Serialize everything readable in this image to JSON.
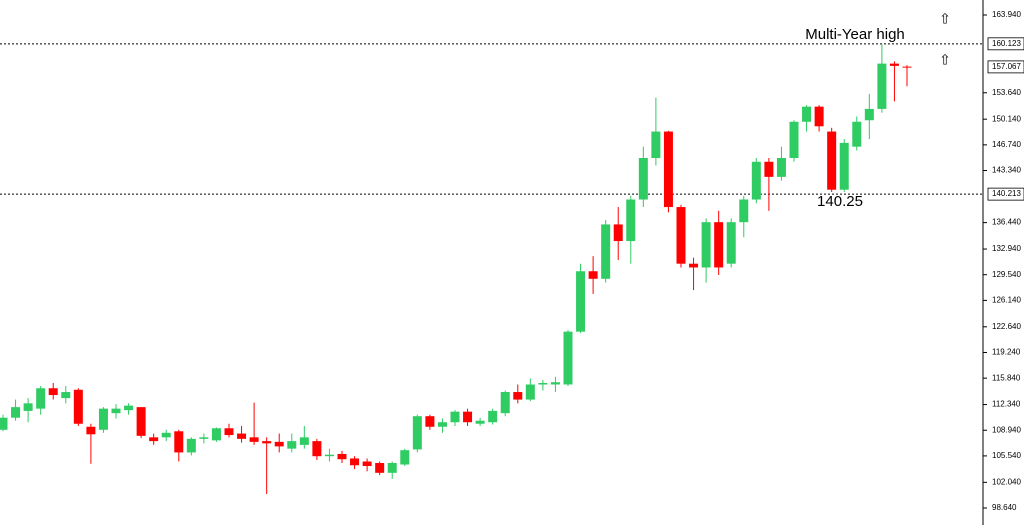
{
  "chart_data": {
    "type": "candlestick",
    "up_color": "#2ecc62",
    "down_color": "#ff0000",
    "open": [
      109.0,
      110.6,
      111.5,
      111.8,
      114.5,
      113.2,
      114.3,
      109.4,
      109.0,
      111.2,
      111.6,
      112.0,
      108.0,
      108.0,
      108.8,
      106.0,
      107.8,
      107.6,
      109.2,
      108.5,
      108.0,
      107.5,
      107.4,
      106.5,
      107.0,
      107.5,
      105.5,
      105.8,
      105.2,
      104.8,
      104.6,
      103.3,
      104.4,
      106.4,
      110.8,
      109.4,
      110.0,
      111.4,
      109.8,
      110.0,
      111.2,
      114.0,
      113.0,
      115.0,
      115.0,
      115.0,
      122.0,
      130.0,
      129.0,
      136.2,
      134.0,
      139.5,
      145.0,
      148.5,
      138.5,
      131.0,
      130.5,
      136.5,
      131.0,
      136.5,
      139.5,
      144.5,
      142.5,
      145.0,
      149.8,
      151.8,
      148.5,
      140.8,
      146.5,
      150.0,
      151.5,
      157.5,
      157.1
    ],
    "high": [
      111.0,
      113.0,
      113.2,
      114.8,
      115.2,
      114.8,
      114.5,
      109.8,
      112.0,
      112.4,
      112.5,
      112.0,
      108.5,
      109.0,
      109.0,
      108.0,
      108.5,
      109.3,
      109.8,
      109.5,
      112.6,
      108.0,
      108.5,
      108.5,
      109.5,
      107.8,
      106.5,
      106.2,
      105.5,
      105.2,
      104.8,
      104.8,
      106.5,
      111.0,
      111.0,
      110.5,
      111.6,
      111.8,
      110.6,
      111.8,
      114.2,
      115.0,
      115.8,
      115.6,
      116.0,
      122.2,
      131.0,
      132.0,
      136.8,
      138.5,
      140.0,
      146.5,
      153.0,
      148.6,
      138.8,
      131.8,
      137.0,
      138.0,
      137.0,
      140.0,
      145.0,
      145.0,
      146.5,
      150.0,
      152.0,
      152.0,
      149.0,
      147.5,
      150.5,
      153.5,
      160.1,
      157.8,
      157.3
    ],
    "low": [
      108.8,
      110.2,
      110.0,
      111.0,
      113.0,
      112.5,
      109.5,
      104.5,
      108.6,
      110.5,
      111.0,
      107.9,
      107.0,
      107.5,
      104.8,
      105.6,
      107.2,
      107.4,
      108.0,
      107.3,
      107.0,
      100.5,
      106.0,
      106.0,
      106.5,
      105.0,
      104.8,
      104.6,
      103.8,
      103.5,
      103.0,
      102.5,
      104.2,
      106.0,
      109.0,
      108.6,
      109.5,
      109.5,
      109.5,
      109.7,
      110.8,
      112.5,
      112.8,
      114.2,
      114.0,
      114.8,
      121.8,
      127.0,
      128.5,
      131.5,
      131.0,
      138.5,
      144.0,
      137.8,
      130.5,
      127.5,
      128.5,
      129.5,
      130.5,
      134.5,
      139.0,
      138.0,
      142.0,
      144.5,
      148.5,
      148.5,
      140.5,
      140.5,
      146.0,
      147.5,
      151.0,
      152.5,
      154.5
    ],
    "close": [
      110.6,
      112.0,
      112.5,
      114.5,
      113.6,
      114.0,
      109.8,
      108.4,
      111.8,
      111.8,
      112.2,
      108.2,
      107.5,
      108.6,
      106.0,
      107.8,
      108.0,
      109.2,
      108.3,
      107.8,
      107.4,
      107.2,
      106.8,
      107.5,
      108.0,
      105.5,
      105.7,
      105.1,
      104.3,
      104.2,
      103.3,
      104.6,
      106.3,
      110.8,
      109.4,
      110.0,
      111.4,
      110.0,
      110.2,
      111.5,
      114.0,
      113.0,
      115.0,
      115.2,
      115.3,
      122.0,
      130.0,
      129.0,
      136.2,
      134.0,
      139.5,
      145.0,
      148.5,
      138.5,
      131.0,
      130.5,
      136.5,
      130.5,
      136.5,
      139.5,
      144.5,
      142.5,
      145.0,
      149.8,
      151.8,
      149.2,
      140.8,
      147.0,
      149.8,
      151.5,
      157.5,
      157.2,
      157.0
    ],
    "ylim": [
      97.5,
      165.5
    ],
    "yticks": [
      {
        "value": 163.94,
        "label": "163.940"
      },
      {
        "value": 153.64,
        "label": "153.640"
      },
      {
        "value": 150.14,
        "label": "150.140"
      },
      {
        "value": 146.74,
        "label": "146.740"
      },
      {
        "value": 143.34,
        "label": "143.340"
      },
      {
        "value": 136.44,
        "label": "136.440"
      },
      {
        "value": 132.94,
        "label": "132.940"
      },
      {
        "value": 129.54,
        "label": "129.540"
      },
      {
        "value": 126.14,
        "label": "126.140"
      },
      {
        "value": 122.64,
        "label": "122.640"
      },
      {
        "value": 119.24,
        "label": "119.240"
      },
      {
        "value": 115.84,
        "label": "115.840"
      },
      {
        "value": 112.34,
        "label": "112.340"
      },
      {
        "value": 108.94,
        "label": "108.940"
      },
      {
        "value": 105.54,
        "label": "105.540"
      },
      {
        "value": 102.04,
        "label": "102.040"
      },
      {
        "value": 98.64,
        "label": "98.640"
      }
    ],
    "levels": [
      {
        "value": 160.123,
        "dotted": true
      },
      {
        "value": 157.067,
        "dotted": false
      },
      {
        "value": 140.213,
        "dotted": true
      }
    ],
    "annotations": [
      "Multi-Year high",
      "140.25"
    ]
  }
}
